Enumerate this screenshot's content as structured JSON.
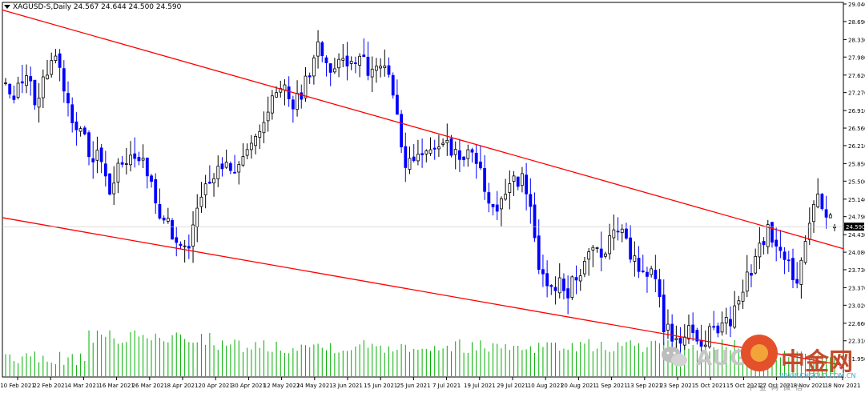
{
  "header": {
    "symbol_line": "XAGUSD-S,Daily  24.567 24.644 24.500 24.590"
  },
  "price_badge": "24.590",
  "watermark": {
    "text": "AUG",
    "cn": "中金网",
    "sub": "WWW.CNGOLD.COM.CN",
    "sub2": "中金网微信"
  },
  "colors": {
    "bull": "#000000",
    "bear": "#0000ff",
    "channel": "#ff0000",
    "volume": "#00b000",
    "grid": "#e6e6e6"
  },
  "chart_data": {
    "type": "candlestick",
    "symbol": "XAGUSD-S",
    "timeframe": "Daily",
    "last": {
      "open": 24.567,
      "high": 24.644,
      "low": 24.5,
      "close": 24.59
    },
    "y_ticks": [
      29.04,
      28.69,
      28.33,
      27.98,
      27.62,
      27.27,
      26.91,
      26.56,
      26.21,
      25.85,
      25.5,
      25.14,
      24.79,
      24.43,
      24.08,
      23.73,
      23.37,
      23.02,
      22.66,
      22.31,
      21.95
    ],
    "ylim": [
      21.65,
      29.04
    ],
    "x_ticks": [
      "10 Feb 2021",
      "22 Feb 2021",
      "4 Mar 2021",
      "16 Mar 2021",
      "26 Mar 2021",
      "8 Apr 2021",
      "20 Apr 2021",
      "30 Apr 2021",
      "12 May 2021",
      "24 May 2021",
      "3 Jun 2021",
      "15 Jun 2021",
      "25 Jun 2021",
      "7 Jul 2021",
      "19 Jul 2021",
      "29 Jul 2021",
      "10 Aug 2021",
      "20 Aug 2021",
      "1 Sep 2021",
      "13 Sep 2021",
      "23 Sep 2021",
      "5 Oct 2021",
      "15 Oct 2021",
      "27 Oct 2021",
      "8 Nov 2021",
      "18 Nov 2021"
    ],
    "close_path": [
      27.4,
      27.1,
      27.7,
      27.15,
      27.45,
      28.1,
      27.5,
      26.7,
      26.5,
      25.8,
      26.1,
      25.2,
      25.85,
      26.1,
      26.0,
      25.6,
      25.0,
      24.6,
      24.3,
      24.1,
      24.8,
      25.4,
      25.5,
      26.0,
      25.7,
      26.1,
      26.4,
      26.6,
      27.1,
      27.4,
      27.0,
      27.2,
      27.8,
      28.2,
      27.6,
      27.95,
      27.8,
      28.0,
      27.7,
      27.8,
      27.9,
      26.9,
      25.8,
      25.9,
      26.1,
      26.2,
      26.3,
      26.1,
      26.0,
      26.2,
      25.6,
      25.0,
      25.1,
      25.4,
      25.6,
      25.2,
      23.8,
      23.4,
      23.5,
      23.2,
      23.7,
      23.9,
      24.2,
      24.0,
      24.7,
      24.3,
      23.9,
      23.6,
      23.8,
      22.6,
      22.4,
      22.3,
      22.6,
      22.1,
      22.5,
      22.6,
      22.7,
      23.2,
      23.6,
      24.2,
      24.5,
      24.1,
      23.8,
      23.5,
      24.4,
      25.2,
      25.0,
      24.59
    ],
    "volume_ylim": [
      0,
      1
    ],
    "channel_upper": {
      "from": {
        "date": "10 Feb 2021",
        "price": 28.92
      },
      "to": {
        "date": "18 Nov 2021",
        "price": 24.15
      }
    },
    "channel_lower": {
      "from": {
        "date": "10 Feb 2021",
        "price": 24.77
      },
      "to": {
        "date": "18 Nov 2021",
        "price": 21.82
      }
    }
  }
}
